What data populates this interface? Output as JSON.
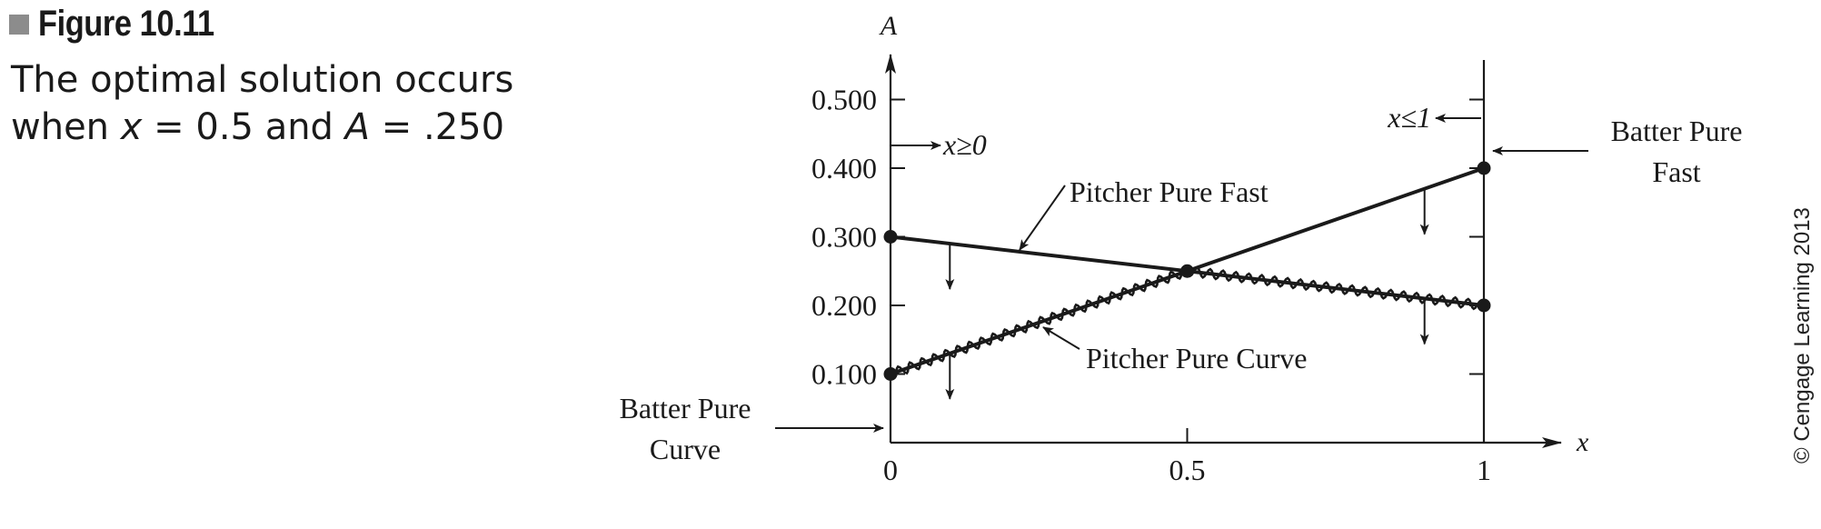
{
  "figure": {
    "label": "Figure 10.11",
    "caption_line1": "The optimal solution occurs",
    "caption_line2_prefix": "when ",
    "caption_x_var": "x",
    "caption_x_eq": " = 0.5 and ",
    "caption_a_var": "A",
    "caption_a_eq": " = .250"
  },
  "credit": "© Cengage Learning 2013",
  "chart_data": {
    "type": "line",
    "xlabel": "x",
    "ylabel": "A",
    "xlim": [
      0,
      1
    ],
    "ylim": [
      0,
      0.5
    ],
    "xticks": [
      0,
      0.5,
      1
    ],
    "xtick_labels": [
      "0",
      "0.5",
      "1"
    ],
    "yticks": [
      0.1,
      0.2,
      0.3,
      0.4,
      0.5
    ],
    "ytick_labels": [
      "0.100",
      "0.200",
      "0.300",
      "0.400",
      "0.500"
    ],
    "series": [
      {
        "name": "Pitcher Pure Fast",
        "x": [
          0,
          1
        ],
        "y": [
          0.3,
          0.2
        ]
      },
      {
        "name": "Pitcher Pure Curve",
        "x": [
          0,
          1
        ],
        "y": [
          0.1,
          0.4
        ]
      }
    ],
    "constraints": [
      {
        "label": "x≥0",
        "x": 0
      },
      {
        "label": "x≤1",
        "x": 1
      }
    ],
    "optimal_point": {
      "x": 0.5,
      "y": 0.25
    },
    "annotations": {
      "pitcher_fast": "Pitcher Pure Fast",
      "pitcher_curve": "Pitcher Pure Curve",
      "batter_fast_line1": "Batter Pure",
      "batter_fast_line2": "Fast",
      "batter_curve_line1": "Batter Pure",
      "batter_curve_line2": "Curve",
      "x_ge_0": "x≥0",
      "x_le_1": "x≤1"
    }
  }
}
